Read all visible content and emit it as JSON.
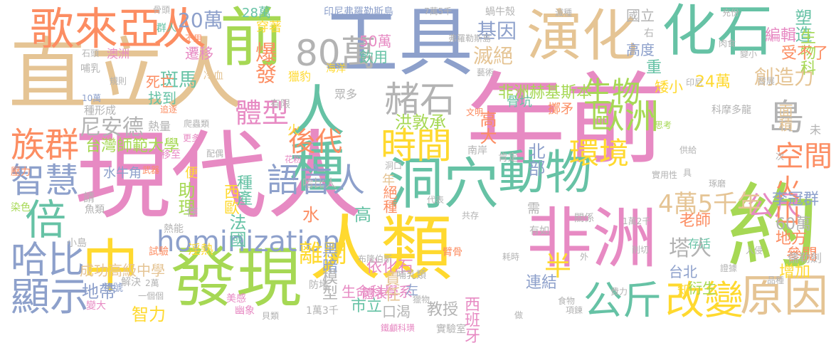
{
  "palette": {
    "pink": "#e78ac3",
    "yellow": "#ffd92f",
    "green": "#a6d854",
    "teal": "#66c2a5",
    "salmon": "#fc8d62",
    "blue": "#8da0cb",
    "tan": "#e5c494",
    "gray": "#b3b3b3"
  },
  "words": [
    {
      "text": "年前",
      "color": "#e78ac3"
    },
    {
      "text": "現代人",
      "color": "#e78ac3"
    },
    {
      "text": "直立人",
      "color": "#e5c494"
    },
    {
      "text": "工具",
      "color": "#8da0cb"
    },
    {
      "text": "人類",
      "color": "#ffd92f"
    },
    {
      "text": "非洲",
      "color": "#e78ac3"
    },
    {
      "text": "發現",
      "color": "#a6d854"
    },
    {
      "text": "約",
      "color": "#a6d854"
    },
    {
      "text": "演化",
      "color": "#e5c494"
    },
    {
      "text": "化石",
      "color": "#66c2a5"
    },
    {
      "text": "前",
      "color": "#a6d854"
    },
    {
      "text": "洞穴",
      "color": "#66c2a5"
    },
    {
      "text": "中",
      "color": "#ffd92f"
    },
    {
      "text": "人種",
      "color": "#66c2a5"
    },
    {
      "text": "歌來亞人",
      "color": "#fc8d62"
    },
    {
      "text": "動物",
      "color": "#66c2a5"
    },
    {
      "text": "80萬",
      "color": "#b3b3b3"
    },
    {
      "text": "原因",
      "color": "#e5c494"
    },
    {
      "text": "改變",
      "color": "#ffd92f"
    },
    {
      "text": "公斤",
      "color": "#66c2a5"
    },
    {
      "text": "顯示",
      "color": "#8da0cb"
    },
    {
      "text": "哈比",
      "color": "#8da0cb"
    },
    {
      "text": "倍",
      "color": "#66c2a5"
    },
    {
      "text": "智慧",
      "color": "#8da0cb"
    },
    {
      "text": "族群",
      "color": "#fc8d62"
    },
    {
      "text": "時間",
      "color": "#ffd92f"
    },
    {
      "text": "語言人",
      "color": "#8da0cb"
    },
    {
      "text": "歐洲",
      "color": "#a6d854"
    },
    {
      "text": "島",
      "color": "#b3b3b3"
    },
    {
      "text": "空間",
      "color": "#fc8d62"
    },
    {
      "text": "hominization",
      "color": "#8da0cb"
    },
    {
      "text": "赭石",
      "color": "#b3b3b3"
    },
    {
      "text": "環境",
      "color": "#ffd92f"
    },
    {
      "text": "生物",
      "color": "#a6d854"
    },
    {
      "text": "後代",
      "color": "#fc8d62"
    },
    {
      "text": "體型",
      "color": "#e78ac3"
    },
    {
      "text": "尼安德",
      "color": "#b3b3b3"
    },
    {
      "text": "20萬",
      "color": "#8da0cb"
    },
    {
      "text": "爆發",
      "color": "#fc8d62"
    },
    {
      "text": "人",
      "color": "#fc8d62"
    },
    {
      "text": "基因",
      "color": "#8da0cb"
    },
    {
      "text": "滅絕",
      "color": "#e5c494"
    },
    {
      "text": "半",
      "color": "#ffd92f"
    },
    {
      "text": "公尺",
      "color": "#e78ac3"
    },
    {
      "text": "4萬5千年",
      "color": "#e5c494"
    },
    {
      "text": "塔人",
      "color": "#b3b3b3"
    },
    {
      "text": "離開",
      "color": "#ffd92f"
    },
    {
      "text": "火山",
      "color": "#fc8d62"
    },
    {
      "text": "創造力",
      "color": "#e5c494"
    },
    {
      "text": "斑馬",
      "color": "#66c2a5"
    },
    {
      "text": "台灣師範大學",
      "color": "#a6d854"
    },
    {
      "text": "非洲赫基斯本",
      "color": "#a6d854"
    },
    {
      "text": "洪敦承",
      "color": "#a6d854"
    },
    {
      "text": "高大",
      "color": "#fc8d62"
    },
    {
      "text": "北部",
      "color": "#8da0cb"
    },
    {
      "text": "生命科學系",
      "color": "#e78ac3"
    },
    {
      "text": "成功高級中學",
      "color": "#e5c494"
    },
    {
      "text": "黑暗",
      "color": "#8da0cb"
    },
    {
      "text": "模型",
      "color": "#b3b3b3"
    },
    {
      "text": "依化石",
      "color": "#e78ac3"
    },
    {
      "text": "責任",
      "color": "#e5c494"
    },
    {
      "text": "高",
      "color": "#66c2a5"
    },
    {
      "text": "水",
      "color": "#fc8d62"
    },
    {
      "text": "法國",
      "color": "#66c2a5"
    },
    {
      "text": "西歐",
      "color": "#ffd92f"
    },
    {
      "text": "助理",
      "color": "#a6d854"
    },
    {
      "text": "種產",
      "color": "#66c2a5"
    },
    {
      "text": "智力",
      "color": "#ffd92f"
    },
    {
      "text": "地帶",
      "color": "#8da0cb"
    },
    {
      "text": "市立",
      "color": "#66c2a5"
    },
    {
      "text": "口渴",
      "color": "#b3b3b3"
    },
    {
      "text": "教授",
      "color": "#b3b3b3"
    },
    {
      "text": "西班牙",
      "color": "#e78ac3"
    },
    {
      "text": "連結",
      "color": "#8da0cb"
    },
    {
      "text": "台北",
      "color": "#8da0cb"
    },
    {
      "text": "老師",
      "color": "#fc8d62"
    },
    {
      "text": "60萬",
      "color": "#b3b3b3"
    },
    {
      "text": "地方",
      "color": "#fc8d62"
    },
    {
      "text": "參閱",
      "color": "#fc8d62"
    },
    {
      "text": "增加",
      "color": "#ffd92f"
    },
    {
      "text": "李冠群",
      "color": "#8da0cb"
    },
    {
      "text": "面積",
      "color": "#e5c494"
    },
    {
      "text": "24萬",
      "color": "#ffd92f"
    },
    {
      "text": "塑造",
      "color": "#66c2a5"
    },
    {
      "text": "生物科",
      "color": "#a6d854"
    },
    {
      "text": "編輯",
      "color": "#e78ac3"
    },
    {
      "text": "受不了",
      "color": "#fc8d62"
    },
    {
      "text": "國立",
      "color": "#b3b3b3"
    },
    {
      "text": "高度",
      "color": "#8da0cb"
    },
    {
      "text": "重",
      "color": "#66c2a5"
    },
    {
      "text": "矮小",
      "color": "#ffd92f"
    },
    {
      "text": "印尼弗羅勒斯島",
      "color": "#8da0cb"
    },
    {
      "text": "50萬",
      "color": "#e78ac3"
    },
    {
      "text": "飲用",
      "color": "#66c2a5"
    },
    {
      "text": "28萬",
      "color": "#66c2a5"
    },
    {
      "text": "穿著",
      "color": "#ffd92f"
    },
    {
      "text": "遷移",
      "color": "#e78ac3"
    },
    {
      "text": "找到",
      "color": "#66c2a5"
    },
    {
      "text": "死亡",
      "color": "#fc8d62"
    },
    {
      "text": "獵豹",
      "color": "#ffd92f"
    },
    {
      "text": "骨坑",
      "color": "#66c2a5"
    },
    {
      "text": "擲矛",
      "color": "#fc8d62"
    },
    {
      "text": "熱量",
      "color": "#b3b3b3"
    },
    {
      "text": "水牛角",
      "color": "#8da0cb"
    },
    {
      "text": "哈比人",
      "color": "#b3b3b3"
    },
    {
      "text": "絕種",
      "color": "#fc8d62"
    },
    {
      "text": "年",
      "color": "#e5c494"
    },
    {
      "text": "左",
      "color": "#8da0cb"
    },
    {
      "text": "體表",
      "color": "#e78ac3"
    },
    {
      "text": "需",
      "color": "#b3b3b3"
    },
    {
      "text": "知",
      "color": "#ffd92f"
    },
    {
      "text": "存活",
      "color": "#66c2a5"
    },
    {
      "text": "衍生",
      "color": "#a6d854"
    },
    {
      "text": "儒勒劍",
      "color": "#b3b3b3"
    },
    {
      "text": "骨頭",
      "color": "#b3b3b3"
    },
    {
      "text": "群人",
      "color": "#66c2a5"
    },
    {
      "text": "不用",
      "color": "#fc8d62"
    },
    {
      "text": "石頭",
      "color": "#b3b3b3"
    },
    {
      "text": "澳洲",
      "color": "#e78ac3"
    },
    {
      "text": "哺乳",
      "color": "#b3b3b3"
    },
    {
      "text": "規則",
      "color": "#b3b3b3"
    },
    {
      "text": "10萬",
      "color": "#8da0cb"
    },
    {
      "text": "冷血",
      "color": "#e5c494"
    },
    {
      "text": "種形成",
      "color": "#b3b3b3"
    },
    {
      "text": "追逐",
      "color": "#fc8d62"
    },
    {
      "text": "爬蟲類",
      "color": "#b3b3b3"
    },
    {
      "text": "更多",
      "color": "#e78ac3"
    },
    {
      "text": "移至",
      "color": "#e78ac3"
    },
    {
      "text": "配偶",
      "color": "#b3b3b3"
    },
    {
      "text": "壓力",
      "color": "#fc8d62"
    },
    {
      "text": "武器",
      "color": "#fc8d62"
    },
    {
      "text": "便",
      "color": "#ffd92f"
    },
    {
      "text": "請",
      "color": "#b3b3b3"
    },
    {
      "text": "染色",
      "color": "#a6d854"
    },
    {
      "text": "魚類",
      "color": "#b3b3b3"
    },
    {
      "text": "作",
      "color": "#b3b3b3"
    },
    {
      "text": "熱能",
      "color": "#b3b3b3"
    },
    {
      "text": "小島",
      "color": "#b3b3b3"
    },
    {
      "text": "淫熱",
      "color": "#ffd92f"
    },
    {
      "text": "試驗",
      "color": "#fc8d62"
    },
    {
      "text": "符號",
      "color": "#8da0cb"
    },
    {
      "text": "解決",
      "color": "#b3b3b3"
    },
    {
      "text": "2萬",
      "color": "#b3b3b3"
    },
    {
      "text": "一個個",
      "color": "#b3b3b3"
    },
    {
      "text": "美感",
      "color": "#e78ac3"
    },
    {
      "text": "變大",
      "color": "#e78ac3"
    },
    {
      "text": "幽象",
      "color": "#e78ac3"
    },
    {
      "text": "貝類",
      "color": "#b3b3b3"
    },
    {
      "text": "1萬3千",
      "color": "#b3b3b3"
    },
    {
      "text": "鐵顱科璜",
      "color": "#e78ac3"
    },
    {
      "text": "實驗室",
      "color": "#b3b3b3"
    },
    {
      "text": "海洋",
      "color": "#ffd92f"
    },
    {
      "text": "有限",
      "color": "#b3b3b3"
    },
    {
      "text": "火",
      "color": "#ffd92f"
    },
    {
      "text": "眾多",
      "color": "#b3b3b3"
    },
    {
      "text": "文明",
      "color": "#fc8d62"
    },
    {
      "text": "南岸",
      "color": "#b3b3b3"
    },
    {
      "text": "肯定",
      "color": "#b3b3b3"
    },
    {
      "text": "花粉",
      "color": "#e78ac3"
    },
    {
      "text": "洞口",
      "color": "#b3b3b3"
    },
    {
      "text": "代表",
      "color": "#b3b3b3"
    },
    {
      "text": "共存",
      "color": "#b3b3b3"
    },
    {
      "text": "臂骨",
      "color": "#fc8d62"
    },
    {
      "text": "布隆伯斯",
      "color": "#b3b3b3"
    },
    {
      "text": "哺乳類",
      "color": "#b3b3b3"
    },
    {
      "text": "防堵",
      "color": "#b3b3b3"
    },
    {
      "text": "獵物",
      "color": "#b3b3b3"
    },
    {
      "text": "耗時",
      "color": "#b3b3b3"
    },
    {
      "text": "有如",
      "color": "#b3b3b3"
    },
    {
      "text": "做",
      "color": "#b3b3b3"
    },
    {
      "text": "食物",
      "color": "#b3b3b3"
    },
    {
      "text": "項鍊",
      "color": "#b3b3b3"
    },
    {
      "text": "外",
      "color": "#b3b3b3"
    },
    {
      "text": "費力",
      "color": "#b3b3b3"
    },
    {
      "text": "削切",
      "color": "#b3b3b3"
    },
    {
      "text": "關係",
      "color": "#b3b3b3"
    },
    {
      "text": "入侵",
      "color": "#b3b3b3"
    },
    {
      "text": "證據",
      "color": "#b3b3b3"
    },
    {
      "text": "品種",
      "color": "#b3b3b3"
    },
    {
      "text": "1萬2千",
      "color": "#b3b3b3"
    },
    {
      "text": "實用性",
      "color": "#b3b3b3"
    },
    {
      "text": "具",
      "color": "#b3b3b3"
    },
    {
      "text": "琢磨",
      "color": "#b3b3b3"
    },
    {
      "text": "供給",
      "color": "#b3b3b3"
    },
    {
      "text": "次",
      "color": "#b3b3b3"
    },
    {
      "text": "思考",
      "color": "#a6d854"
    },
    {
      "text": "科摩多龍",
      "color": "#b3b3b3"
    },
    {
      "text": "未",
      "color": "#b3b3b3"
    },
    {
      "text": "印尼",
      "color": "#b3b3b3"
    },
    {
      "text": "發展",
      "color": "#b3b3b3"
    },
    {
      "text": "肉食",
      "color": "#b3b3b3"
    },
    {
      "text": "變小",
      "color": "#b3b3b3"
    },
    {
      "text": "藝術",
      "color": "#b3b3b3"
    },
    {
      "text": "弗羅勒斯島",
      "color": "#b3b3b3"
    },
    {
      "text": "7萬5千",
      "color": "#b3b3b3"
    },
    {
      "text": "蝸牛殼",
      "color": "#b3b3b3"
    },
    {
      "text": "滅種",
      "color": "#b3b3b3"
    },
    {
      "text": "充份",
      "color": "#b3b3b3"
    },
    {
      "text": "右",
      "color": "#b3b3b3"
    }
  ]
}
